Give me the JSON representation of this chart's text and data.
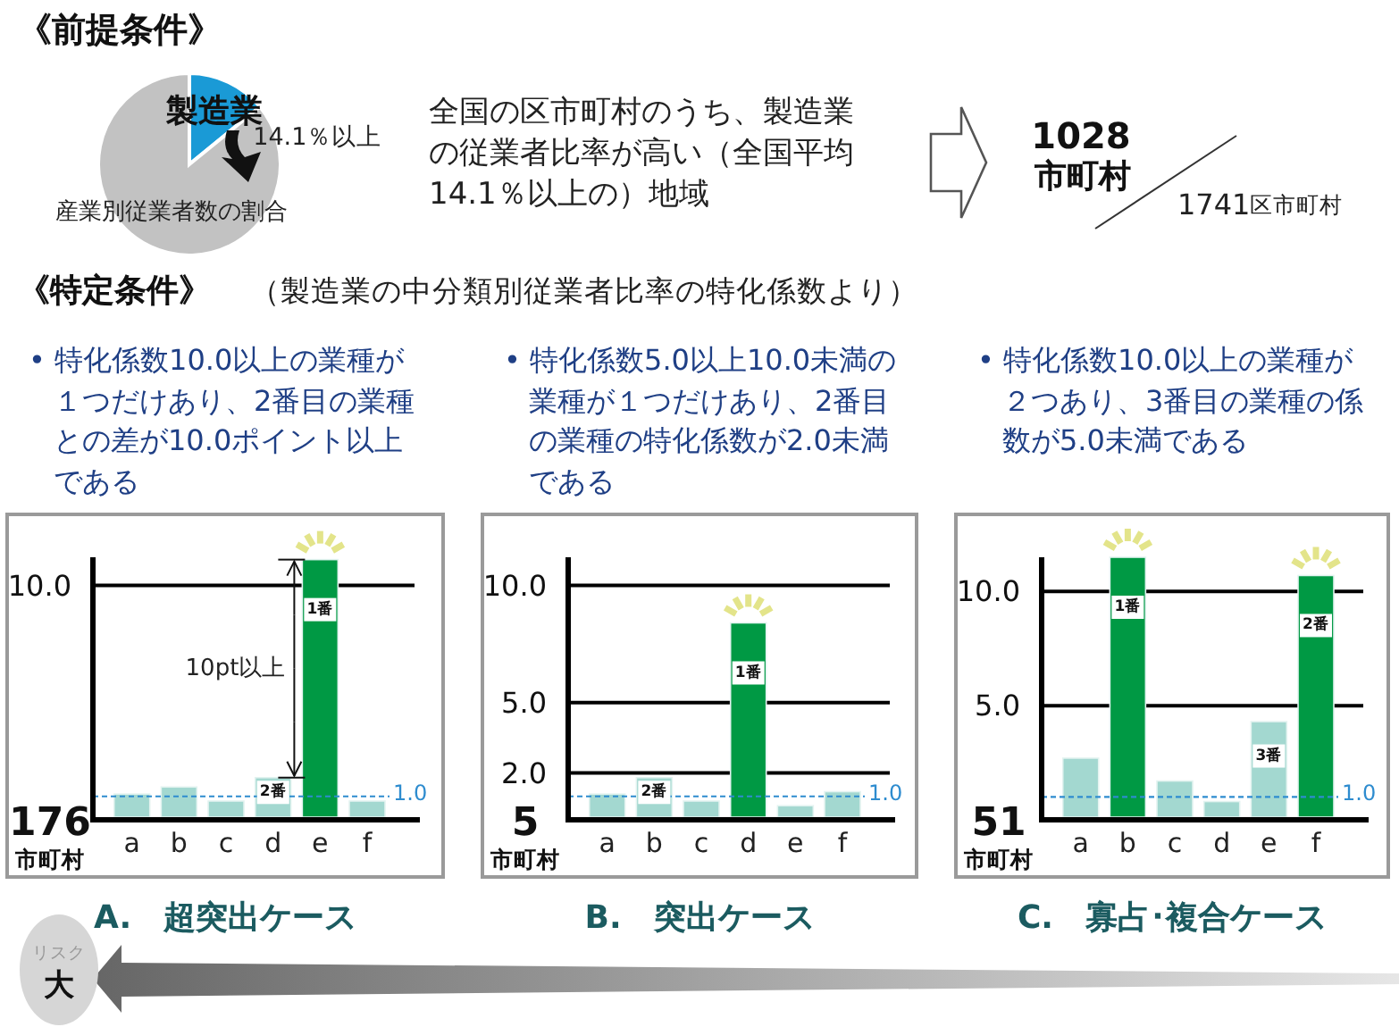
{
  "chart_data": [
    {
      "type": "pie",
      "title": "《前提条件》",
      "categories": [
        "製造業",
        null
      ],
      "values": [
        14.1,
        85.9
      ],
      "colors": [
        "#1a9ad6",
        "#c2c2c2"
      ],
      "value_labels": [
        "14.1％以上",
        null
      ],
      "annotations": [
        "産業別従業者数の割合"
      ]
    },
    {
      "type": "other",
      "annotations": [
        "全国の区市町村のうち、製造業の従業者比率が高い（全国平均14.1％以上の）地域",
        "1028",
        "市町村",
        "1741区市町村"
      ]
    },
    {
      "type": "other",
      "title": "《特定条件》",
      "subtitle": "（製造業の中分類別従業者比率の特化係数より）"
    },
    {
      "type": "bar",
      "title": "• 特化係数10.0以上の業種が１つだけあり、2番目の業種との差が10.0ポイント以上である",
      "xlabel": "A.　超突出ケース",
      "categories": [
        "a",
        "b",
        "c",
        "d",
        "e",
        "f"
      ],
      "values": [
        1.1,
        1.4,
        0.8,
        1.8,
        11.1,
        0.8
      ],
      "colors": [
        "#a3d8d0",
        "#a3d8d0",
        "#a3d8d0",
        "#a3d8d0",
        "#009944",
        "#a3d8d0"
      ],
      "ylim": [
        0,
        11.2
      ],
      "yticks": [
        {
          "value": 10,
          "label": "10.0"
        }
      ],
      "ref_lines": [
        {
          "axis": "y",
          "value": 10,
          "color": "#000000",
          "line_style": "solid"
        },
        {
          "axis": "y",
          "value": 1.0,
          "label": "1.0",
          "color": "#2e8ccf",
          "line_style": "dashed"
        }
      ],
      "annotations": [
        "176",
        "市町村",
        "10pt以上",
        {
          "text": "2番",
          "x": "d",
          "y": 1.8
        },
        {
          "text": "1番",
          "x": "e",
          "y": 11.1
        }
      ]
    },
    {
      "type": "bar",
      "title": "• 特化係数5.0以上10.0未満の業種が１つだけあり、2番目の業種の特化係数が2.0未満である",
      "xlabel": "B.　突出ケース",
      "categories": [
        "a",
        "b",
        "c",
        "d",
        "e",
        "f"
      ],
      "values": [
        1.1,
        1.8,
        0.8,
        8.4,
        0.6,
        1.2
      ],
      "colors": [
        "#a3d8d0",
        "#a3d8d0",
        "#a3d8d0",
        "#009944",
        "#a3d8d0",
        "#a3d8d0"
      ],
      "ylim": [
        0,
        11.2
      ],
      "yticks": [
        {
          "value": 2,
          "label": "2.0"
        },
        {
          "value": 5,
          "label": "5.0"
        },
        {
          "value": 10,
          "label": "10.0"
        }
      ],
      "grid": "y",
      "ref_lines": [
        {
          "axis": "y",
          "value": 1.0,
          "label": "1.0",
          "color": "#2e8ccf",
          "line_style": "dashed"
        }
      ],
      "annotations": [
        "5",
        "市町村",
        {
          "text": "2番",
          "x": "b",
          "y": 1.8
        },
        {
          "text": "1番",
          "x": "d",
          "y": 8.4
        }
      ]
    },
    {
      "type": "bar",
      "title": "• 特化係数10.0以上の業種が２つあり、3番目の業種の係数が5.0未満である",
      "xlabel": "C.　寡占･複合ケース",
      "categories": [
        "a",
        "b",
        "c",
        "d",
        "e",
        "f"
      ],
      "values": [
        2.7,
        11.5,
        1.7,
        0.8,
        4.3,
        10.7
      ],
      "colors": [
        "#a3d8d0",
        "#009944",
        "#a3d8d0",
        "#a3d8d0",
        "#a3d8d0",
        "#009944"
      ],
      "ylim": [
        0,
        11.5
      ],
      "yticks": [
        {
          "value": 5,
          "label": "5.0"
        },
        {
          "value": 10,
          "label": "10.0"
        }
      ],
      "grid": "y",
      "ref_lines": [
        {
          "axis": "y",
          "value": 1.0,
          "label": "1.0",
          "color": "#2e8ccf",
          "line_style": "dashed"
        }
      ],
      "annotations": [
        "51",
        "市町村",
        {
          "text": "1番",
          "x": "b",
          "y": 11.5
        },
        {
          "text": "3番",
          "x": "e",
          "y": 4.3
        },
        {
          "text": "2番",
          "x": "f",
          "y": 10.7
        }
      ]
    },
    {
      "type": "other",
      "annotations": [
        "リスク",
        "大"
      ]
    }
  ]
}
